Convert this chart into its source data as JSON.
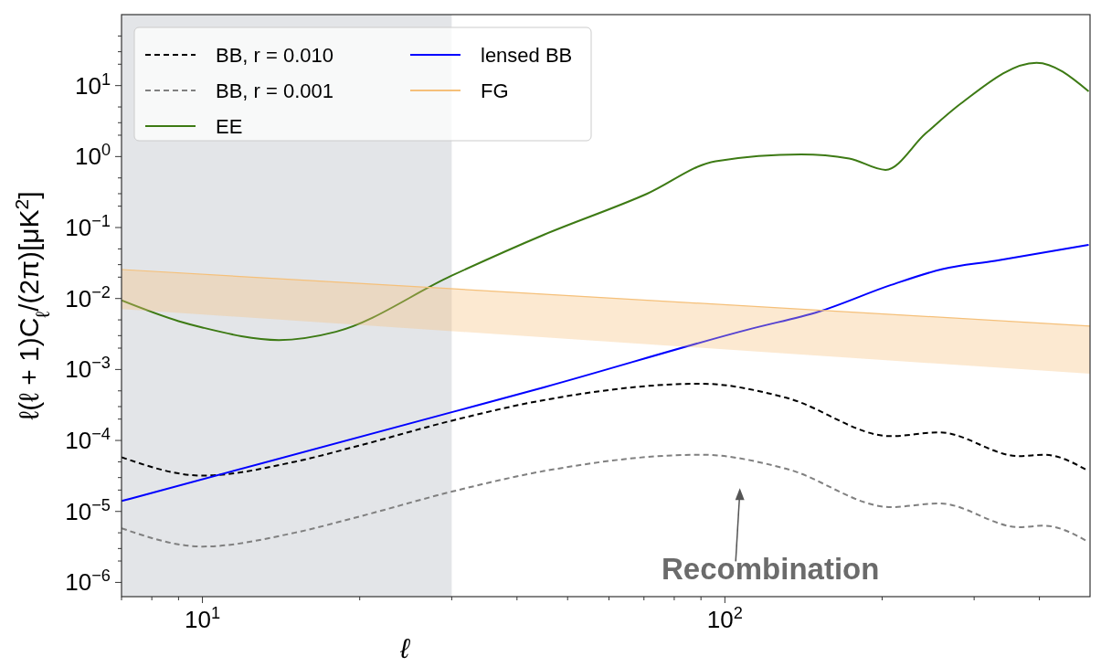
{
  "chart_data": {
    "type": "line",
    "xlabel": "ℓ",
    "ylabel": "ℓ(ℓ + 1)C$_{ℓ}$/(2π)[μK$^{2}$]",
    "log": "xy",
    "grid": false,
    "legend": "top left",
    "xlim": [
      7,
      500
    ],
    "ylim": [
      6.3e-07,
      100
    ],
    "xticks": [
      {
        "value": 7,
        "label": null
      },
      {
        "value": 8,
        "label": null
      },
      {
        "value": 9,
        "label": null
      },
      {
        "value": 10,
        "label": "10$^{1}$"
      },
      {
        "value": 20,
        "label": null
      },
      {
        "value": 30,
        "label": null
      },
      {
        "value": 40,
        "label": null
      },
      {
        "value": 50,
        "label": null
      },
      {
        "value": 60,
        "label": null
      },
      {
        "value": 70,
        "label": null
      },
      {
        "value": 80,
        "label": null
      },
      {
        "value": 90,
        "label": null
      },
      {
        "value": 100,
        "label": "10$^{2}$"
      },
      {
        "value": 200,
        "label": null
      },
      {
        "value": 300,
        "label": null
      },
      {
        "value": 400,
        "label": null
      }
    ],
    "yticks": [
      {
        "value": 1e-06,
        "label": "10$^{−6}$"
      },
      {
        "value": 1e-05,
        "label": "10$^{−5}$"
      },
      {
        "value": 0.0001,
        "label": "10$^{−4}$"
      },
      {
        "value": 0.001,
        "label": "10$^{−3}$"
      },
      {
        "value": 0.01,
        "label": "10$^{−2}$"
      },
      {
        "value": 0.1,
        "label": "10$^{−1}$"
      },
      {
        "value": 1,
        "label": "10$^{0}$"
      },
      {
        "value": 10,
        "label": "10$^{1}$"
      },
      {
        "value": 2e-06,
        "label": null
      },
      {
        "value": 3e-06,
        "label": null
      },
      {
        "value": 5e-06,
        "label": null
      },
      {
        "value": 2e-05,
        "label": null
      },
      {
        "value": 3e-05,
        "label": null
      },
      {
        "value": 5e-05,
        "label": null
      },
      {
        "value": 0.0002,
        "label": null
      },
      {
        "value": 0.0003,
        "label": null
      },
      {
        "value": 0.0005,
        "label": null
      },
      {
        "value": 0.002,
        "label": null
      },
      {
        "value": 0.003,
        "label": null
      },
      {
        "value": 0.005,
        "label": null
      },
      {
        "value": 0.02,
        "label": null
      },
      {
        "value": 0.03,
        "label": null
      },
      {
        "value": 0.05,
        "label": null
      },
      {
        "value": 0.2,
        "label": null
      },
      {
        "value": 0.3,
        "label": null
      },
      {
        "value": 0.5,
        "label": null
      },
      {
        "value": 2,
        "label": null
      },
      {
        "value": 3,
        "label": null
      },
      {
        "value": 5,
        "label": null
      },
      {
        "value": 20,
        "label": null
      },
      {
        "value": 30,
        "label": null
      },
      {
        "value": 50,
        "label": null
      }
    ],
    "series": [
      {
        "name": "BB, r = 0.010",
        "color": "#000000",
        "line_style": "dashed",
        "x": [
          7,
          10,
          15,
          20,
          30,
          45,
          90,
          131,
          208,
          257,
          366,
          408,
          497
        ],
        "values": [
          5.8e-05,
          3.2e-05,
          5e-05,
          8.5e-05,
          0.00019,
          0.00037,
          0.00063,
          0.0004,
          0.000115,
          0.00013,
          6e-05,
          6.3e-05,
          3.7e-05
        ]
      },
      {
        "name": "BB, r = 0.001",
        "color": "#808080",
        "line_style": "dashed",
        "x": [
          7,
          10,
          15,
          20,
          30,
          45,
          90,
          131,
          208,
          257,
          366,
          408,
          497
        ],
        "values": [
          5.8e-06,
          3.2e-06,
          5e-06,
          8.5e-06,
          1.9e-05,
          3.7e-05,
          6.3e-05,
          4e-05,
          1.15e-05,
          1.3e-05,
          6e-06,
          6.3e-06,
          3.7e-06
        ]
      },
      {
        "name": "EE",
        "color": "#3d7a14",
        "line_style": "solid",
        "x": [
          7,
          9,
          10,
          14,
          18,
          30,
          45,
          71,
          96,
          140,
          173,
          203,
          242,
          283,
          395,
          497
        ],
        "values": [
          0.0094,
          0.0048,
          0.0039,
          0.0026,
          0.0034,
          0.021,
          0.079,
          0.3,
          0.86,
          1.07,
          0.94,
          0.65,
          2.1,
          5.6,
          21,
          8.3
        ]
      },
      {
        "name": "lensed BB",
        "color": "#0000ff",
        "line_style": "solid",
        "x": [
          7,
          30,
          45,
          113,
          151,
          208,
          261,
          329,
          497
        ],
        "values": [
          1.4e-05,
          0.00025,
          0.00056,
          0.0038,
          0.0065,
          0.0155,
          0.026,
          0.034,
          0.057
        ]
      },
      {
        "name": "FG",
        "color": "#f5c07a",
        "line_style": "solid",
        "x": [
          7,
          500
        ],
        "values": [
          0.0256,
          0.0041
        ],
        "lower": [
          0.0071,
          0.00087
        ],
        "upper": [
          0.0256,
          0.0041
        ]
      }
    ],
    "bands": [
      {
        "axis": "x",
        "from": 7,
        "to": 30,
        "color": "#e3e5e8"
      }
    ],
    "annotations": [
      "Recombination"
    ]
  }
}
